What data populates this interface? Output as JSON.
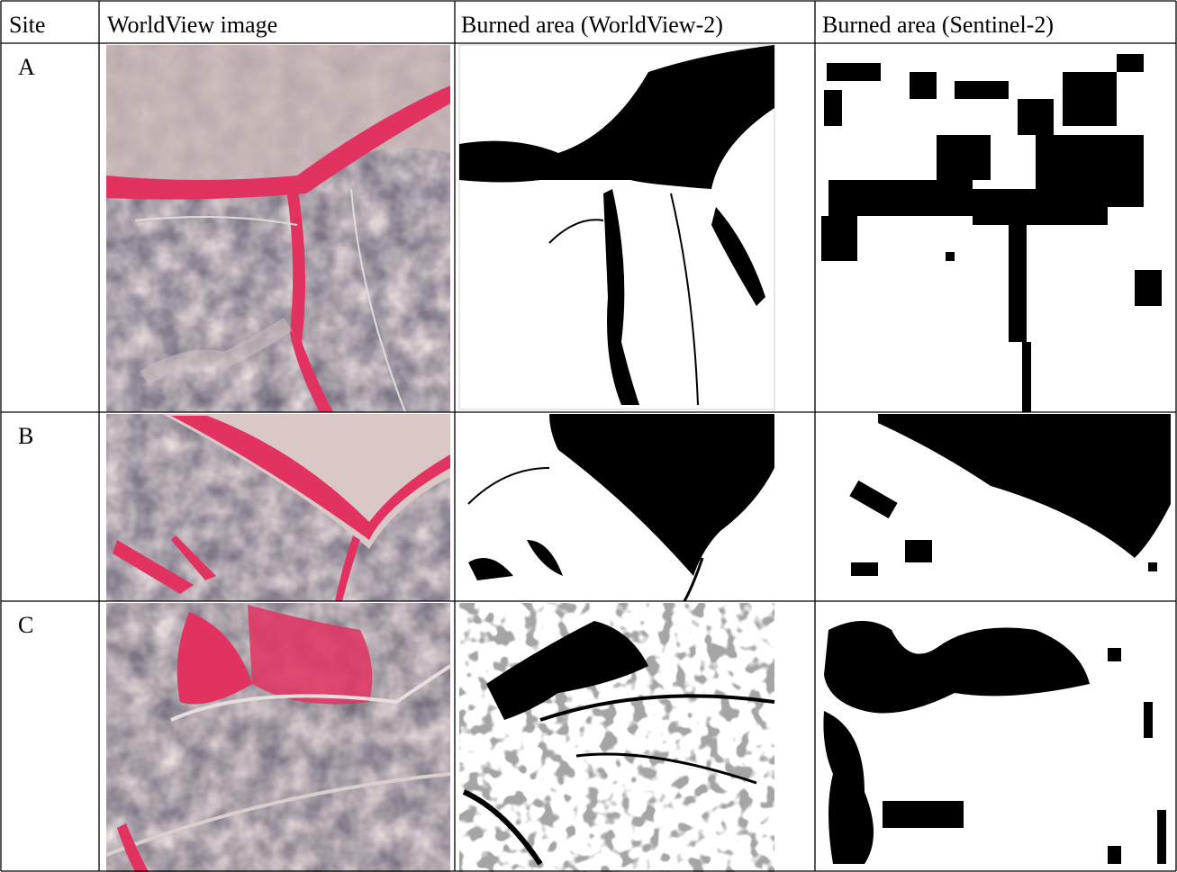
{
  "table": {
    "header": [
      "Site",
      "WorldView image",
      "Burned area (WorldView-2)",
      "Burned area (Sentinel-2)"
    ],
    "rows": [
      "A",
      "B",
      "C"
    ]
  }
}
